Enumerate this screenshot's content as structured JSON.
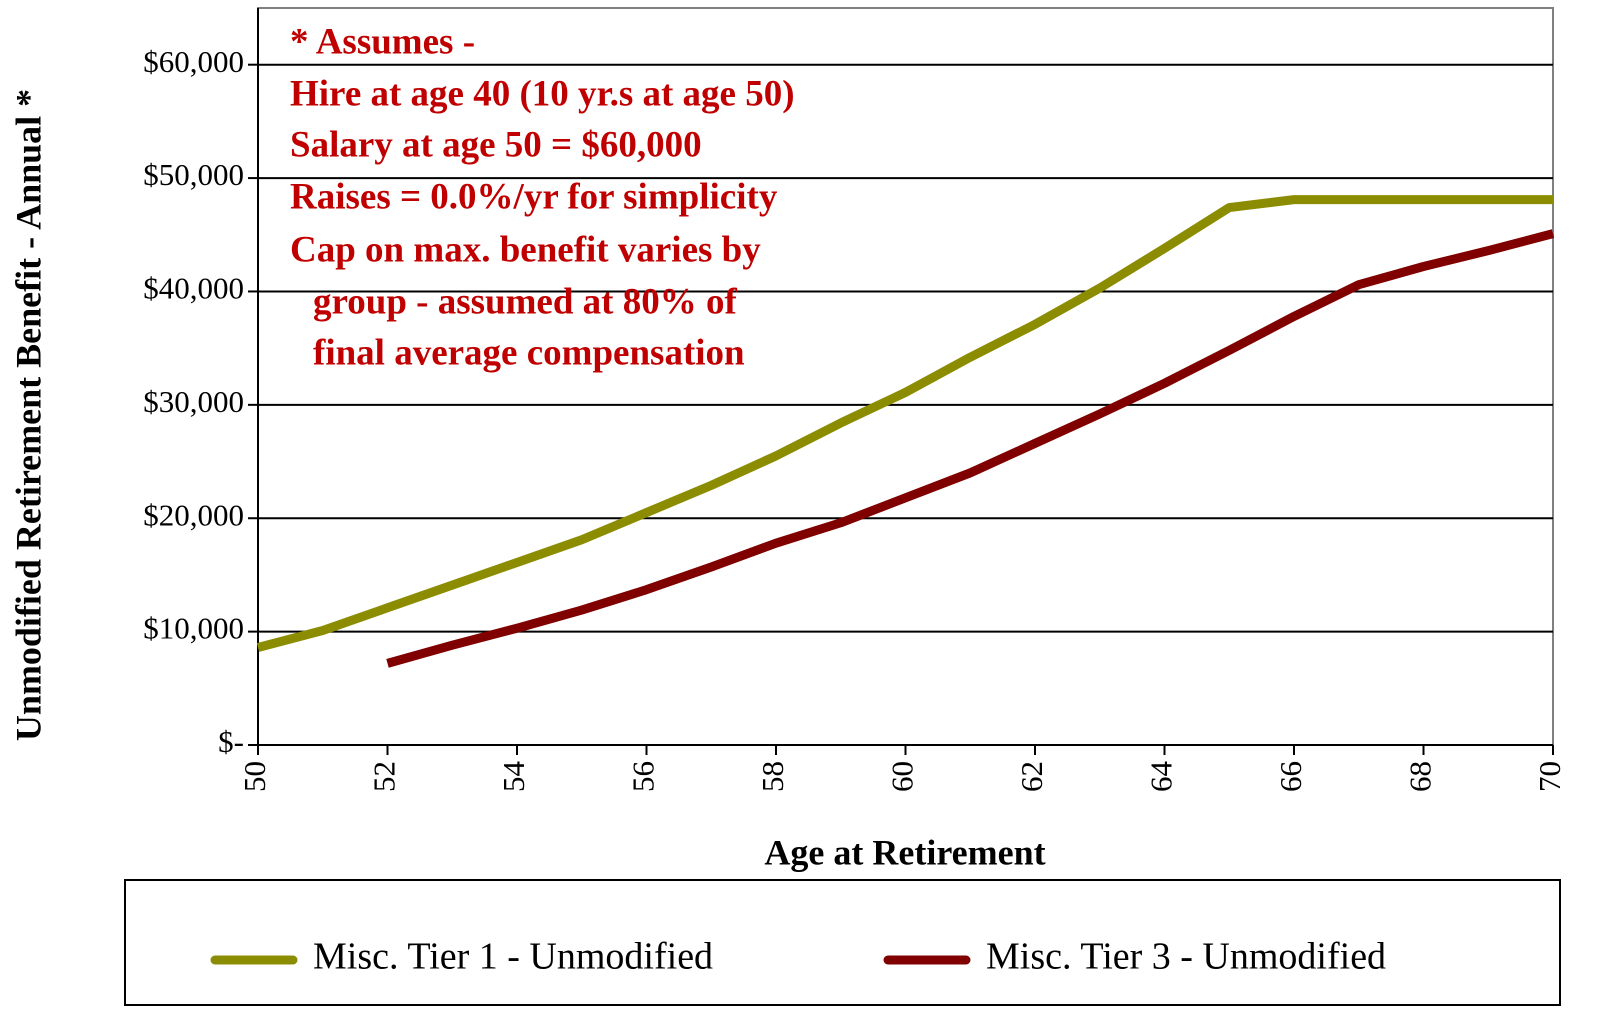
{
  "chart_data": {
    "type": "line",
    "x_label": "Age at Retirement",
    "y_label": "Unmodified Retirement Benefit - Annual *",
    "annotation": [
      "* Assumes -",
      "Hire at age 40 (10 yr.s at age 50)",
      "Salary at age 50 = $60,000",
      "Raises = 0.0%/yr for simplicity",
      "Cap on max. benefit varies by",
      "group - assumed at 80% of",
      "final average compensation"
    ],
    "x": [
      50,
      51,
      52,
      53,
      54,
      55,
      56,
      57,
      58,
      59,
      60,
      61,
      62,
      63,
      64,
      65,
      66,
      67,
      68,
      69,
      70
    ],
    "series": [
      {
        "name": "Misc. Tier 1 - Unmodified",
        "color": "#8c8c00",
        "values": [
          8600,
          10100,
          12100,
          14100,
          16100,
          18100,
          20500,
          22900,
          25500,
          28400,
          31100,
          34200,
          37100,
          40300,
          43800,
          47400,
          48100,
          48100,
          48100,
          48100,
          48100
        ]
      },
      {
        "name": "Misc. Tier 3 - Unmodified",
        "color": "#800000",
        "values": [
          null,
          null,
          7200,
          8800,
          10300,
          11900,
          13700,
          15700,
          17800,
          19600,
          21800,
          24000,
          26600,
          29200,
          31900,
          34800,
          37800,
          40600,
          42200,
          43600,
          45100
        ]
      }
    ],
    "xlim": [
      50,
      70
    ],
    "xticks": [
      50,
      52,
      54,
      56,
      58,
      60,
      62,
      64,
      66,
      68,
      70
    ],
    "ylim": [
      0,
      65000
    ],
    "yticks": [
      {
        "value": 0,
        "label": "$-"
      },
      {
        "value": 10000,
        "label": "$10,000"
      },
      {
        "value": 20000,
        "label": "$20,000"
      },
      {
        "value": 30000,
        "label": "$30,000"
      },
      {
        "value": 40000,
        "label": "$40,000"
      },
      {
        "value": 50000,
        "label": "$50,000"
      },
      {
        "value": 60000,
        "label": "$60,000"
      }
    ],
    "grid": true
  }
}
